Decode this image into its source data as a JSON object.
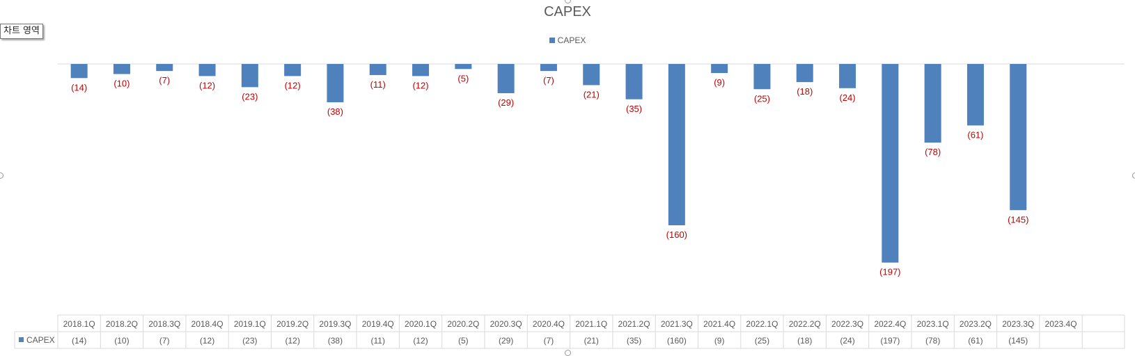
{
  "chart_data": {
    "type": "bar",
    "title": "CAPEX",
    "categories": [
      "2018.1Q",
      "2018.2Q",
      "2018.3Q",
      "2018.4Q",
      "2019.1Q",
      "2019.2Q",
      "2019.3Q",
      "2019.4Q",
      "2020.1Q",
      "2020.2Q",
      "2020.3Q",
      "2020.4Q",
      "2021.1Q",
      "2021.2Q",
      "2021.3Q",
      "2021.4Q",
      "2022.1Q",
      "2022.2Q",
      "2022.3Q",
      "2022.4Q",
      "2023.1Q",
      "2023.2Q",
      "2023.3Q",
      "2023.4Q"
    ],
    "series": [
      {
        "name": "CAPEX",
        "values": [
          -14,
          -10,
          -7,
          -12,
          -23,
          -12,
          -38,
          -11,
          -12,
          -5,
          -29,
          -7,
          -21,
          -35,
          -160,
          -9,
          -25,
          -18,
          -24,
          -197,
          -78,
          -61,
          -145,
          null
        ],
        "labels": [
          "(14)",
          "(10)",
          "(7)",
          "(12)",
          "(23)",
          "(12)",
          "(38)",
          "(11)",
          "(12)",
          "(5)",
          "(29)",
          "(7)",
          "(21)",
          "(35)",
          "(160)",
          "(9)",
          "(25)",
          "(18)",
          "(24)",
          "(197)",
          "(78)",
          "(61)",
          "(145)",
          ""
        ]
      }
    ],
    "ylim": [
      -220,
      0
    ],
    "legend": "top-center",
    "grid": false,
    "data_table": true,
    "colors": {
      "bar": "#4F81BD",
      "data_label": "#C00000",
      "axis": "#D9D9D9",
      "text": "#595959"
    }
  },
  "ui": {
    "tooltip": "차트 영역"
  }
}
